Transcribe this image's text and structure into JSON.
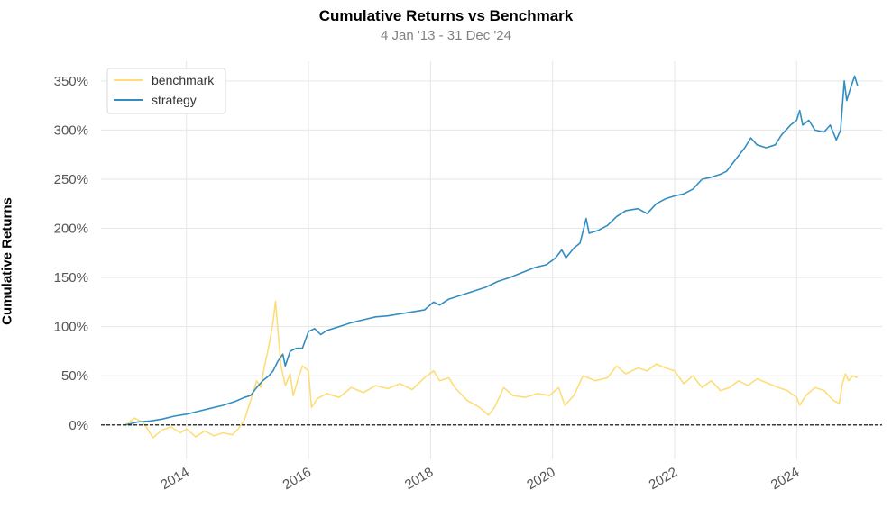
{
  "chart_data": {
    "type": "line",
    "title": "Cumulative Returns vs Benchmark",
    "subtitle": "4 Jan '13 - 31 Dec '24",
    "ylabel": "Cumulative Returns",
    "xlabel": "",
    "xlim": [
      2012.6,
      2025.4
    ],
    "ylim": [
      -35,
      370
    ],
    "x_ticks": [
      2014,
      2016,
      2018,
      2020,
      2022,
      2024
    ],
    "x_tick_labels": [
      "2014",
      "2016",
      "2018",
      "2020",
      "2022",
      "2024"
    ],
    "y_ticks": [
      0,
      50,
      100,
      150,
      200,
      250,
      300,
      350
    ],
    "y_tick_labels": [
      "0%",
      "50%",
      "100%",
      "150%",
      "200%",
      "250%",
      "300%",
      "350%"
    ],
    "grid": true,
    "legend_position": "top-left",
    "baseline": 0,
    "series": [
      {
        "name": "benchmark",
        "color": "#fedd78",
        "points": [
          [
            2013.0,
            0
          ],
          [
            2013.15,
            7
          ],
          [
            2013.3,
            2
          ],
          [
            2013.45,
            -13
          ],
          [
            2013.6,
            -5
          ],
          [
            2013.75,
            -2
          ],
          [
            2013.9,
            -8
          ],
          [
            2014.0,
            -4
          ],
          [
            2014.15,
            -12
          ],
          [
            2014.3,
            -6
          ],
          [
            2014.45,
            -11
          ],
          [
            2014.6,
            -8
          ],
          [
            2014.75,
            -10
          ],
          [
            2014.85,
            -4
          ],
          [
            2014.95,
            5
          ],
          [
            2015.0,
            15
          ],
          [
            2015.08,
            30
          ],
          [
            2015.15,
            45
          ],
          [
            2015.22,
            38
          ],
          [
            2015.28,
            60
          ],
          [
            2015.35,
            80
          ],
          [
            2015.42,
            105
          ],
          [
            2015.46,
            126
          ],
          [
            2015.5,
            95
          ],
          [
            2015.55,
            60
          ],
          [
            2015.62,
            40
          ],
          [
            2015.7,
            52
          ],
          [
            2015.75,
            30
          ],
          [
            2015.82,
            45
          ],
          [
            2015.9,
            60
          ],
          [
            2016.0,
            55
          ],
          [
            2016.05,
            18
          ],
          [
            2016.15,
            27
          ],
          [
            2016.3,
            32
          ],
          [
            2016.5,
            28
          ],
          [
            2016.7,
            38
          ],
          [
            2016.9,
            33
          ],
          [
            2017.1,
            40
          ],
          [
            2017.3,
            37
          ],
          [
            2017.5,
            42
          ],
          [
            2017.7,
            36
          ],
          [
            2017.9,
            48
          ],
          [
            2018.05,
            55
          ],
          [
            2018.15,
            45
          ],
          [
            2018.3,
            48
          ],
          [
            2018.4,
            38
          ],
          [
            2018.6,
            25
          ],
          [
            2018.8,
            18
          ],
          [
            2018.95,
            10
          ],
          [
            2019.05,
            18
          ],
          [
            2019.2,
            38
          ],
          [
            2019.35,
            30
          ],
          [
            2019.55,
            28
          ],
          [
            2019.75,
            32
          ],
          [
            2019.95,
            30
          ],
          [
            2020.1,
            38
          ],
          [
            2020.2,
            20
          ],
          [
            2020.35,
            30
          ],
          [
            2020.5,
            50
          ],
          [
            2020.7,
            45
          ],
          [
            2020.9,
            48
          ],
          [
            2021.05,
            60
          ],
          [
            2021.2,
            52
          ],
          [
            2021.4,
            58
          ],
          [
            2021.55,
            55
          ],
          [
            2021.7,
            62
          ],
          [
            2021.85,
            58
          ],
          [
            2022.0,
            55
          ],
          [
            2022.15,
            42
          ],
          [
            2022.3,
            50
          ],
          [
            2022.45,
            38
          ],
          [
            2022.6,
            45
          ],
          [
            2022.75,
            35
          ],
          [
            2022.9,
            38
          ],
          [
            2023.05,
            45
          ],
          [
            2023.2,
            40
          ],
          [
            2023.35,
            47
          ],
          [
            2023.55,
            42
          ],
          [
            2023.7,
            38
          ],
          [
            2023.85,
            35
          ],
          [
            2024.0,
            28
          ],
          [
            2024.05,
            20
          ],
          [
            2024.15,
            30
          ],
          [
            2024.3,
            38
          ],
          [
            2024.45,
            35
          ],
          [
            2024.6,
            25
          ],
          [
            2024.7,
            22
          ],
          [
            2024.75,
            42
          ],
          [
            2024.8,
            52
          ],
          [
            2024.85,
            45
          ],
          [
            2024.92,
            50
          ],
          [
            2025.0,
            48
          ]
        ]
      },
      {
        "name": "strategy",
        "color": "#348dc1",
        "points": [
          [
            2013.0,
            0
          ],
          [
            2013.2,
            3
          ],
          [
            2013.4,
            4
          ],
          [
            2013.6,
            6
          ],
          [
            2013.8,
            9
          ],
          [
            2014.0,
            11
          ],
          [
            2014.2,
            14
          ],
          [
            2014.4,
            17
          ],
          [
            2014.6,
            20
          ],
          [
            2014.8,
            24
          ],
          [
            2014.95,
            28
          ],
          [
            2015.05,
            30
          ],
          [
            2015.15,
            38
          ],
          [
            2015.25,
            45
          ],
          [
            2015.35,
            50
          ],
          [
            2015.42,
            55
          ],
          [
            2015.5,
            65
          ],
          [
            2015.58,
            72
          ],
          [
            2015.62,
            60
          ],
          [
            2015.7,
            75
          ],
          [
            2015.8,
            78
          ],
          [
            2015.9,
            78
          ],
          [
            2016.0,
            95
          ],
          [
            2016.1,
            98
          ],
          [
            2016.2,
            92
          ],
          [
            2016.3,
            96
          ],
          [
            2016.5,
            100
          ],
          [
            2016.7,
            104
          ],
          [
            2016.9,
            107
          ],
          [
            2017.1,
            110
          ],
          [
            2017.3,
            111
          ],
          [
            2017.5,
            113
          ],
          [
            2017.7,
            115
          ],
          [
            2017.9,
            117
          ],
          [
            2018.05,
            125
          ],
          [
            2018.15,
            122
          ],
          [
            2018.3,
            128
          ],
          [
            2018.5,
            132
          ],
          [
            2018.7,
            136
          ],
          [
            2018.9,
            140
          ],
          [
            2019.1,
            146
          ],
          [
            2019.3,
            150
          ],
          [
            2019.5,
            155
          ],
          [
            2019.7,
            160
          ],
          [
            2019.9,
            163
          ],
          [
            2020.05,
            170
          ],
          [
            2020.15,
            178
          ],
          [
            2020.22,
            170
          ],
          [
            2020.35,
            180
          ],
          [
            2020.45,
            185
          ],
          [
            2020.55,
            210
          ],
          [
            2020.6,
            195
          ],
          [
            2020.75,
            198
          ],
          [
            2020.9,
            203
          ],
          [
            2021.05,
            212
          ],
          [
            2021.2,
            218
          ],
          [
            2021.4,
            220
          ],
          [
            2021.55,
            215
          ],
          [
            2021.7,
            225
          ],
          [
            2021.85,
            230
          ],
          [
            2022.0,
            233
          ],
          [
            2022.15,
            235
          ],
          [
            2022.3,
            240
          ],
          [
            2022.45,
            250
          ],
          [
            2022.6,
            252
          ],
          [
            2022.75,
            255
          ],
          [
            2022.85,
            258
          ],
          [
            2023.0,
            270
          ],
          [
            2023.15,
            282
          ],
          [
            2023.25,
            292
          ],
          [
            2023.35,
            285
          ],
          [
            2023.5,
            282
          ],
          [
            2023.65,
            285
          ],
          [
            2023.75,
            295
          ],
          [
            2023.9,
            305
          ],
          [
            2024.0,
            310
          ],
          [
            2024.05,
            320
          ],
          [
            2024.1,
            305
          ],
          [
            2024.2,
            310
          ],
          [
            2024.3,
            300
          ],
          [
            2024.45,
            298
          ],
          [
            2024.55,
            305
          ],
          [
            2024.65,
            290
          ],
          [
            2024.72,
            300
          ],
          [
            2024.78,
            350
          ],
          [
            2024.82,
            330
          ],
          [
            2024.88,
            342
          ],
          [
            2024.95,
            355
          ],
          [
            2025.0,
            345
          ]
        ]
      }
    ]
  }
}
